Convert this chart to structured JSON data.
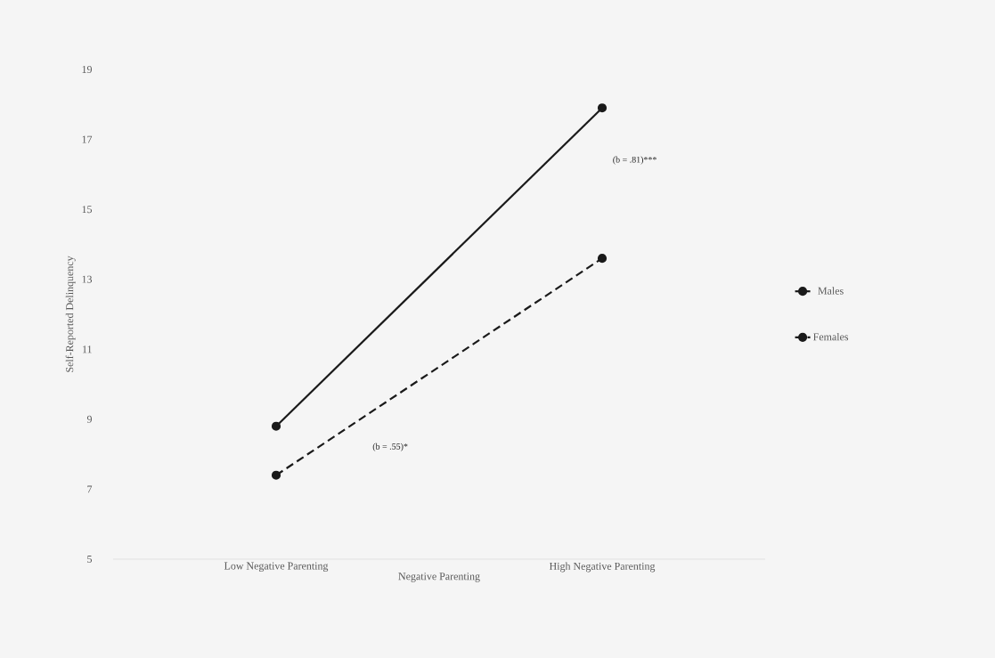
{
  "chart_data": {
    "type": "line",
    "xlabel": "Negative Parenting",
    "ylabel": "Self-Reported Delinquency",
    "categories": [
      "Low Negative Parenting",
      "High Negative Parenting"
    ],
    "series": [
      {
        "name": "Males",
        "color": "#1a1a1a",
        "values": [
          8.8,
          17.9
        ],
        "line_style": "solid"
      },
      {
        "name": "Females",
        "color": "#1a1a1a",
        "values": [
          7.4,
          13.6
        ],
        "line_style": "dashed"
      }
    ],
    "ylim": [
      5,
      19
    ],
    "yticks": [
      5,
      7,
      9,
      11,
      13,
      15,
      17,
      19
    ],
    "annotations": [
      "(b = .81)***",
      "(b = .55)*"
    ],
    "marker": "circle",
    "legend": "right",
    "grid": false
  }
}
